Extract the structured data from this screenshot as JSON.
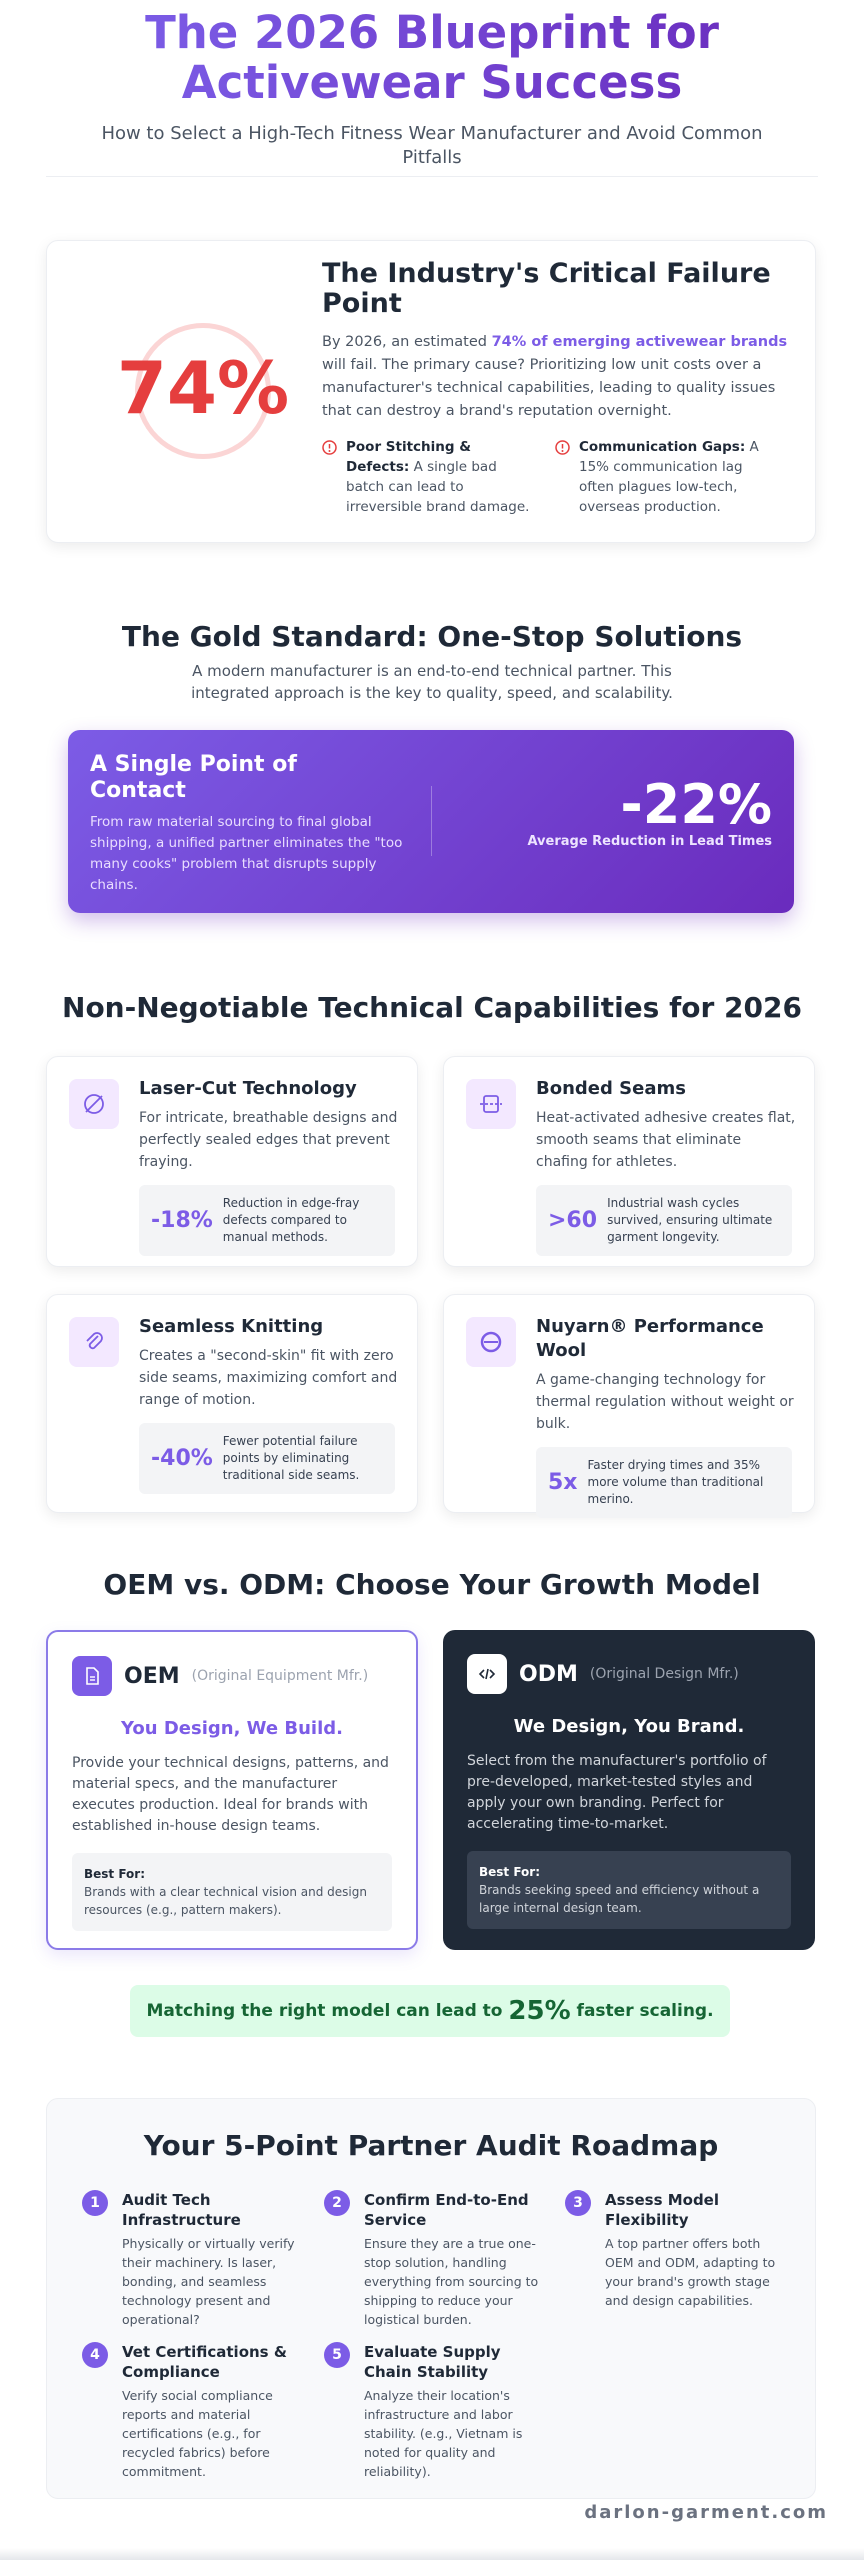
{
  "header": {
    "title": "The 2026 Blueprint for Activewear Success",
    "subtitle": "How to Select a High-Tech Fitness Wear Manufacturer and Avoid Common Pitfalls"
  },
  "failure": {
    "stat": "74%",
    "title": "The Industry's Critical Failure Point",
    "text_before": "By 2026, an estimated ",
    "text_highlight": "74% of emerging activewear brands",
    "text_after": " will fail. The primary cause? Prioritizing low unit costs over a manufacturer's technical capabilities, leading to quality issues that can destroy a brand's reputation overnight.",
    "points": [
      {
        "label": "Poor Stitching & Defects:",
        "text": " A single bad batch can lead to irreversible brand damage."
      },
      {
        "label": "Communication Gaps:",
        "text": " A 15% communication lag often plagues low-tech, overseas production."
      }
    ]
  },
  "gold": {
    "title": "The Gold Standard: One-Stop Solutions",
    "subtitle": "A modern manufacturer is an end-to-end technical partner. This integrated approach is the key to quality, speed, and scalability.",
    "card_title": "A Single Point of Contact",
    "card_text": "From raw material sourcing to final global shipping, a unified partner eliminates the \"too many cooks\" problem that disrupts supply chains.",
    "stat": "-22%",
    "stat_label": "Average Reduction in Lead Times"
  },
  "capabilities": {
    "title": "Non-Negotiable Technical Capabilities for 2026",
    "items": [
      {
        "title": "Laser-Cut Technology",
        "text": "For intricate, breathable designs and perfectly sealed edges that prevent fraying.",
        "stat": "-18%",
        "stat_text": "Reduction in edge-fray defects compared to manual methods."
      },
      {
        "title": "Bonded Seams",
        "text": "Heat-activated adhesive creates flat, smooth seams that eliminate chafing for athletes.",
        "stat": ">60",
        "stat_text": "Industrial wash cycles survived, ensuring ultimate garment longevity."
      },
      {
        "title": "Seamless Knitting",
        "text": "Creates a \"second-skin\" fit with zero side seams, maximizing comfort and range of motion.",
        "stat": "-40%",
        "stat_text": "Fewer potential failure points by eliminating traditional side seams."
      },
      {
        "title": "Nuyarn® Performance Wool",
        "text": "A game-changing technology for thermal regulation without weight or bulk.",
        "stat": "5x",
        "stat_text": "Faster drying times and 35% more volume than traditional merino."
      }
    ]
  },
  "models": {
    "title": "OEM vs. ODM: Choose Your Growth Model",
    "items": [
      {
        "name": "OEM",
        "full": "(Original Equipment Mfr.)",
        "tagline": "You Design, We Build.",
        "text": "Provide your technical designs, patterns, and material specs, and the manufacturer executes production. Ideal for brands with established in-house design teams.",
        "best_label": "Best For:",
        "best_text": "Brands with a clear technical vision and design resources (e.g., pattern makers)."
      },
      {
        "name": "ODM",
        "full": "(Original Design Mfr.)",
        "tagline": "We Design, You Brand.",
        "text": "Select from the manufacturer's portfolio of pre-developed, market-tested styles and apply your own branding. Perfect for accelerating time-to-market.",
        "best_label": "Best For:",
        "best_text": "Brands seeking speed and efficiency without a large internal design team."
      }
    ]
  },
  "banner": {
    "before": "Matching the right model can lead to ",
    "stat": "25%",
    "after": " faster scaling."
  },
  "roadmap": {
    "title": "Your 5-Point Partner Audit Roadmap",
    "steps": [
      {
        "number": 1,
        "title": "Audit Tech Infrastructure",
        "text": "Physically or virtually verify their machinery. Is laser, bonding, and seamless technology present and operational?"
      },
      {
        "number": 2,
        "title": "Confirm End-to-End Service",
        "text": "Ensure they are a true one-stop solution, handling everything from sourcing to shipping to reduce your logistical burden."
      },
      {
        "number": 3,
        "title": "Assess Model Flexibility",
        "text": "A top partner offers both OEM and ODM, adapting to your brand's growth stage and design capabilities."
      },
      {
        "number": 4,
        "title": "Vet Certifications & Compliance",
        "text": "Verify social compliance reports and material certifications (e.g., for recycled fabrics) before commitment."
      },
      {
        "number": 5,
        "title": "Evaluate Supply Chain Stability",
        "text": "Analyze their location's infrastructure and labor stability. (e.g., Vietnam is noted for quality and reliability)."
      }
    ]
  },
  "footer": "darlon-garment.com"
}
